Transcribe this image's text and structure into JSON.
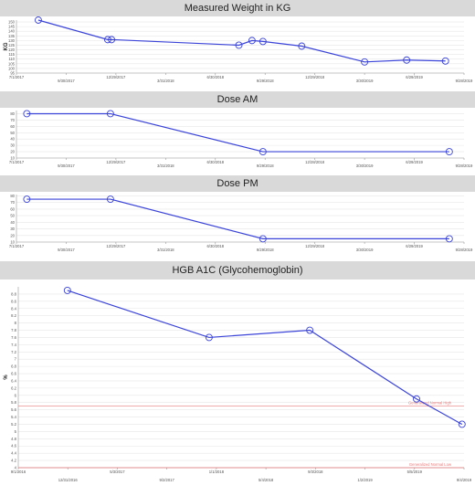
{
  "colors": {
    "line": "#3b44d8",
    "grid": "#e6e6e6",
    "axis": "#555555",
    "ref": "#e87a7a",
    "title_bg": "#d9d9d9"
  },
  "chart_data": [
    {
      "type": "line",
      "title": "Measured Weight in KG",
      "ylabel": "KG",
      "xlabel": "",
      "x_tick_labels": [
        "7/1/2017",
        "9/30/2017",
        "12/29/2017",
        "3/31/2018",
        "6/30/2018",
        "9/29/2018",
        "12/29/2018",
        "3/30/2019",
        "6/29/2019",
        "9/28/2019"
      ],
      "xlim": [
        "2017-07-01",
        "2019-09-28"
      ],
      "y_ticks": [
        95,
        100,
        105,
        110,
        115,
        120,
        125,
        130,
        135,
        140,
        145,
        150
      ],
      "ylim": [
        95,
        152
      ],
      "grid": true,
      "series": [
        {
          "x": [
            "2017-08-10",
            "2017-12-15",
            "2017-12-22",
            "2018-08-12",
            "2018-09-05",
            "2018-09-25",
            "2018-12-05",
            "2019-03-30",
            "2019-06-15",
            "2019-08-25"
          ],
          "y": [
            152,
            131,
            131,
            125,
            130,
            129,
            124,
            107,
            109,
            108
          ]
        }
      ]
    },
    {
      "type": "line",
      "title": "Dose AM",
      "ylabel": "",
      "xlabel": "",
      "x_tick_labels": [
        "7/1/2017",
        "9/30/2017",
        "12/29/2017",
        "3/31/2018",
        "6/30/2018",
        "9/29/2018",
        "12/28/2018",
        "3/30/2019",
        "6/29/2019",
        "9/28/2019"
      ],
      "xlim": [
        "2017-07-01",
        "2019-09-28"
      ],
      "y_ticks": [
        10,
        20,
        30,
        40,
        50,
        60,
        70,
        80
      ],
      "ylim": [
        10,
        85
      ],
      "grid": true,
      "series": [
        {
          "x": [
            "2017-07-20",
            "2017-12-20",
            "2018-09-25",
            "2019-09-01"
          ],
          "y": [
            80,
            80,
            20,
            20
          ]
        }
      ]
    },
    {
      "type": "line",
      "title": "Dose PM",
      "ylabel": "",
      "xlabel": "",
      "x_tick_labels": [
        "7/1/2017",
        "9/30/2017",
        "12/29/2017",
        "3/31/2018",
        "6/30/2018",
        "9/29/2018",
        "12/29/2018",
        "3/30/2019",
        "6/29/2019",
        "9/28/2019"
      ],
      "xlim": [
        "2017-07-01",
        "2019-09-28"
      ],
      "y_ticks": [
        10,
        20,
        30,
        40,
        50,
        60,
        70,
        80
      ],
      "ylim": [
        10,
        82
      ],
      "grid": true,
      "series": [
        {
          "x": [
            "2017-07-20",
            "2017-12-20",
            "2018-09-25",
            "2019-09-01"
          ],
          "y": [
            75,
            75,
            15,
            15
          ]
        }
      ]
    },
    {
      "type": "line",
      "title": "HGB A1C (Glycohemoglobin)",
      "ylabel": "%",
      "xlabel": "",
      "x_tick_labels": [
        "9/1/2016",
        "12/31/2016",
        "5/3/2017",
        "9/2/2017",
        "1/1/2018",
        "5/4/2018",
        "9/3/2018",
        "1/2/2019",
        "5/5/2019",
        "9/4/2019"
      ],
      "xlim": [
        "2016-09-01",
        "2019-09-04"
      ],
      "y_ticks": [
        4,
        4.2,
        4.4,
        4.6,
        4.8,
        5,
        5.2,
        5.4,
        5.6,
        5.8,
        6,
        6.2,
        6.4,
        6.6,
        6.8,
        7,
        7.2,
        7.4,
        7.6,
        7.8,
        8,
        8.2,
        8.4,
        8.6,
        8.8
      ],
      "ylim": [
        4,
        9
      ],
      "grid": true,
      "series": [
        {
          "x": [
            "2016-12-31",
            "2017-12-15",
            "2018-08-20",
            "2019-05-10",
            "2019-08-30"
          ],
          "y": [
            8.9,
            7.6,
            7.8,
            5.9,
            5.2
          ]
        }
      ],
      "reference_lines": [
        {
          "y": 5.7,
          "label": "Generalized Normal High"
        },
        {
          "y": 4,
          "label": "Generalized Normal Low"
        }
      ]
    }
  ]
}
